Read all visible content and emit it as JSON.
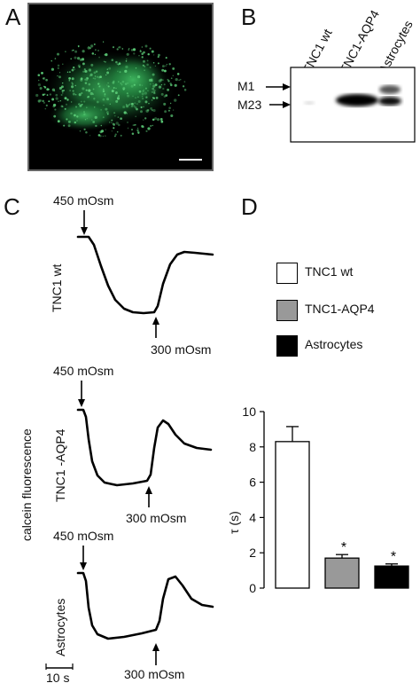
{
  "panels": {
    "A": {
      "letter": "A"
    },
    "B": {
      "letter": "B",
      "lanes": [
        "TNC1 wt",
        "TNC1-AQP4",
        "Astrocytes"
      ],
      "markers": [
        "M1",
        "M23"
      ]
    },
    "C": {
      "letter": "C",
      "ylabel": "calcein fluorescence",
      "traces": [
        {
          "name": "TNC1 wt",
          "stimulus_on": "450 mOsm",
          "stimulus_off": "300 mOsm"
        },
        {
          "name": "TNC1 -AQP4",
          "stimulus_on": "450 mOsm",
          "stimulus_off": "300 mOsm"
        },
        {
          "name": "Astrocytes",
          "stimulus_on": "450 mOsm",
          "stimulus_off": "300 mOsm"
        }
      ],
      "scalebar": "10 s"
    },
    "D": {
      "letter": "D"
    }
  },
  "chart_data": {
    "type": "bar",
    "categories": [
      "TNC1 wt",
      "TNC1-AQP4",
      "Astrocytes"
    ],
    "values": [
      8.3,
      1.7,
      1.25
    ],
    "errors": [
      0.85,
      0.2,
      0.12
    ],
    "colors": [
      "#ffffff",
      "#999999",
      "#000000"
    ],
    "significance": [
      "",
      "*",
      "*"
    ],
    "ylabel": "τ (s)",
    "ylim": [
      0,
      10
    ],
    "yticks": [
      0,
      2,
      4,
      6,
      8,
      10
    ],
    "legend": [
      "TNC1 wt",
      "TNC1-AQP4",
      "Astrocytes"
    ]
  }
}
